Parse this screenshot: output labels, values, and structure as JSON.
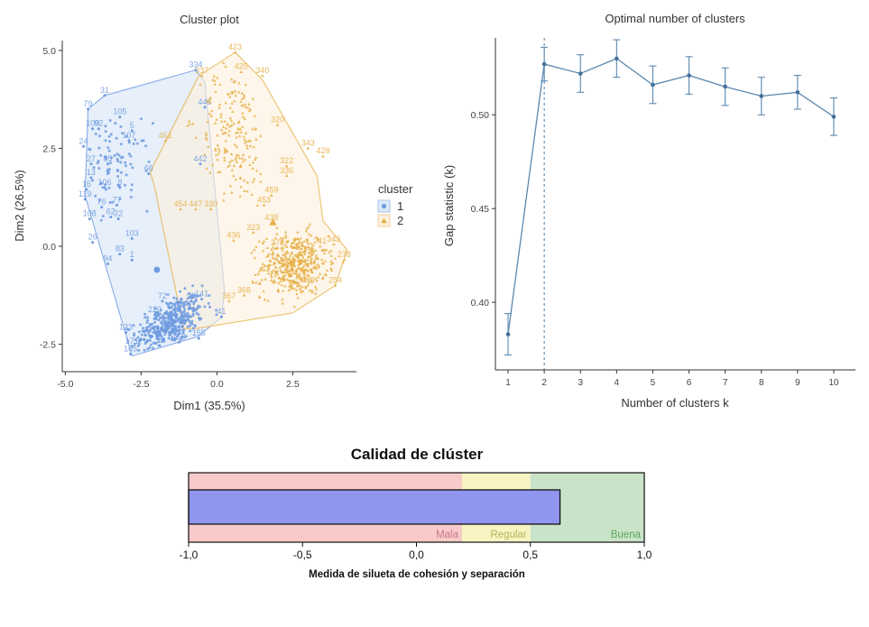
{
  "chart_data": [
    {
      "type": "scatter",
      "title": "Cluster plot",
      "xlabel": "Dim1 (35.5%)",
      "ylabel": "Dim2 (26.5%)",
      "xlim": [
        -5.1,
        4.6
      ],
      "ylim": [
        -3.2,
        5.25
      ],
      "x_ticks": [
        -5.0,
        -2.5,
        0.0,
        2.5
      ],
      "x_tick_labels": [
        "-5.0",
        "-2.5",
        "0.0",
        "2.5"
      ],
      "y_ticks": [
        -2.5,
        0.0,
        2.5,
        5.0
      ],
      "y_tick_labels": [
        "-2.5",
        "0.0",
        "2.5",
        "5.0"
      ],
      "legend": {
        "title": "cluster",
        "position": "right",
        "entries": [
          {
            "label": "1",
            "shape": "circle",
            "color": "#6f9be0"
          },
          {
            "label": "2",
            "shape": "triangle",
            "color": "#e6b048"
          }
        ]
      },
      "series": [
        {
          "name": "1",
          "color": "#6f9be0",
          "fill": "#dde9f8",
          "hull": [
            [
              -2.8,
              -2.8
            ],
            [
              -4.35,
              1.3
            ],
            [
              -4.25,
              3.5
            ],
            [
              -3.7,
              3.85
            ],
            [
              -0.7,
              4.5
            ],
            [
              -0.4,
              4.2
            ],
            [
              0.25,
              -1.15
            ],
            [
              0.15,
              -1.8
            ],
            [
              -0.6,
              -2.3
            ],
            [
              -2.8,
              -2.8
            ]
          ],
          "centroid": [
            -1.98,
            -0.6
          ],
          "labeled_points": [
            {
              "x": -4.25,
              "y": 3.5,
              "label": "79"
            },
            {
              "x": -3.7,
              "y": 3.85,
              "label": "31"
            },
            {
              "x": -3.2,
              "y": 3.3,
              "label": "105"
            },
            {
              "x": -4.1,
              "y": 3.0,
              "label": "100"
            },
            {
              "x": -3.9,
              "y": 3.0,
              "label": "92"
            },
            {
              "x": -2.8,
              "y": 2.95,
              "label": "5"
            },
            {
              "x": -2.9,
              "y": 2.7,
              "label": "107"
            },
            {
              "x": -4.4,
              "y": 2.55,
              "label": "24"
            },
            {
              "x": -3.6,
              "y": 2.1,
              "label": "85"
            },
            {
              "x": -4.15,
              "y": 2.1,
              "label": "27"
            },
            {
              "x": -4.15,
              "y": 1.75,
              "label": "13"
            },
            {
              "x": -4.3,
              "y": 1.45,
              "label": "16"
            },
            {
              "x": -3.7,
              "y": 1.5,
              "label": "106"
            },
            {
              "x": -3.2,
              "y": 1.5,
              "label": "8"
            },
            {
              "x": -4.35,
              "y": 1.2,
              "label": "119"
            },
            {
              "x": -3.8,
              "y": 1.0,
              "label": "76"
            },
            {
              "x": -3.3,
              "y": 1.05,
              "label": "77"
            },
            {
              "x": -3.5,
              "y": 0.75,
              "label": "62"
            },
            {
              "x": -3.25,
              "y": 0.7,
              "label": "22"
            },
            {
              "x": -4.2,
              "y": 0.7,
              "label": "108"
            },
            {
              "x": -4.1,
              "y": 0.1,
              "label": "26"
            },
            {
              "x": -2.8,
              "y": 0.2,
              "label": "103"
            },
            {
              "x": -3.2,
              "y": -0.2,
              "label": "83"
            },
            {
              "x": -3.6,
              "y": -0.45,
              "label": "94"
            },
            {
              "x": -2.8,
              "y": -0.35,
              "label": "1"
            },
            {
              "x": -0.7,
              "y": 4.5,
              "label": "334"
            },
            {
              "x": -0.4,
              "y": 3.55,
              "label": "446"
            },
            {
              "x": -0.55,
              "y": 2.1,
              "label": "442"
            },
            {
              "x": -2.25,
              "y": 1.85,
              "label": "66"
            },
            {
              "x": -1.8,
              "y": -1.4,
              "label": "72"
            },
            {
              "x": -2.05,
              "y": -1.75,
              "label": "220"
            },
            {
              "x": -3.0,
              "y": -2.2,
              "label": "123"
            },
            {
              "x": -2.8,
              "y": -2.55,
              "label": "171"
            },
            {
              "x": -2.85,
              "y": -2.75,
              "label": "165"
            },
            {
              "x": -1.25,
              "y": -2.45,
              "label": "153"
            },
            {
              "x": -0.6,
              "y": -2.35,
              "label": "155"
            },
            {
              "x": 0.15,
              "y": -1.8,
              "label": "41"
            },
            {
              "x": -0.5,
              "y": -1.35,
              "label": "141"
            },
            {
              "x": -0.85,
              "y": -1.4,
              "label": "96"
            }
          ],
          "dense_clusters": [
            {
              "cx": -1.55,
              "cy": -1.95,
              "sx": 0.55,
              "sy": 0.35,
              "rho": 0.55,
              "n": 420
            },
            {
              "cx": -3.3,
              "cy": 2.05,
              "sx": 0.55,
              "sy": 0.55,
              "rho": 0.0,
              "n": 90
            }
          ]
        },
        {
          "name": "2",
          "color": "#e6b048",
          "fill": "#fdf0dc",
          "hull": [
            [
              0.6,
              4.95
            ],
            [
              -0.6,
              4.35
            ],
            [
              -2.2,
              1.9
            ],
            [
              -2.05,
              1.5
            ],
            [
              -1.1,
              -2.1
            ],
            [
              -0.7,
              -2.1
            ],
            [
              2.5,
              -1.7
            ],
            [
              3.9,
              -1.0
            ],
            [
              4.3,
              -0.1
            ],
            [
              3.5,
              0.65
            ],
            [
              3.3,
              1.8
            ],
            [
              1.5,
              4.25
            ],
            [
              0.6,
              4.95
            ]
          ],
          "centroid": [
            1.85,
            0.6
          ],
          "labeled_points": [
            {
              "x": 0.6,
              "y": 4.95,
              "label": "423"
            },
            {
              "x": 1.5,
              "y": 4.35,
              "label": "340"
            },
            {
              "x": 0.8,
              "y": 4.45,
              "label": "425"
            },
            {
              "x": -0.5,
              "y": 4.35,
              "label": "337"
            },
            {
              "x": 2.0,
              "y": 3.1,
              "label": "320"
            },
            {
              "x": -1.7,
              "y": 2.7,
              "label": "461"
            },
            {
              "x": 3.0,
              "y": 2.5,
              "label": "343"
            },
            {
              "x": 3.5,
              "y": 2.3,
              "label": "428"
            },
            {
              "x": 2.3,
              "y": 2.05,
              "label": "322"
            },
            {
              "x": 2.3,
              "y": 1.8,
              "label": "336"
            },
            {
              "x": 1.8,
              "y": 1.3,
              "label": "459"
            },
            {
              "x": 1.55,
              "y": 1.05,
              "label": "453"
            },
            {
              "x": 1.8,
              "y": 0.6,
              "label": "438"
            },
            {
              "x": -1.2,
              "y": 0.95,
              "label": "454"
            },
            {
              "x": -0.7,
              "y": 0.95,
              "label": "447"
            },
            {
              "x": -0.2,
              "y": 0.95,
              "label": "330"
            },
            {
              "x": 1.2,
              "y": 0.35,
              "label": "323"
            },
            {
              "x": 0.55,
              "y": 0.15,
              "label": "436"
            },
            {
              "x": 2.0,
              "y": -0.05,
              "label": "278"
            },
            {
              "x": 3.4,
              "y": 0.0,
              "label": "241"
            },
            {
              "x": 3.85,
              "y": 0.05,
              "label": "343"
            },
            {
              "x": 4.2,
              "y": -0.35,
              "label": "278"
            },
            {
              "x": 2.2,
              "y": -0.5,
              "label": "23"
            },
            {
              "x": 3.0,
              "y": -1.0,
              "label": "305"
            },
            {
              "x": 3.9,
              "y": -1.0,
              "label": "254"
            },
            {
              "x": 0.9,
              "y": -1.25,
              "label": "366"
            },
            {
              "x": 0.4,
              "y": -1.4,
              "label": "367"
            }
          ],
          "dense_clusters": [
            {
              "cx": 2.55,
              "cy": -0.45,
              "sx": 0.55,
              "sy": 0.4,
              "rho": 0.1,
              "n": 460
            },
            {
              "cx": 0.55,
              "cy": 2.85,
              "sx": 0.55,
              "sy": 0.85,
              "rho": -0.2,
              "n": 190
            }
          ]
        }
      ]
    },
    {
      "type": "line",
      "title": "Optimal number of clusters",
      "xlabel": "Number of clusters k",
      "ylabel": "Gap statistic (k)",
      "x": [
        1,
        2,
        3,
        4,
        5,
        6,
        7,
        8,
        9,
        10
      ],
      "x_tick_labels": [
        "1",
        "2",
        "3",
        "4",
        "5",
        "6",
        "7",
        "8",
        "9",
        "10"
      ],
      "y_ticks": [
        0.4,
        0.45,
        0.5
      ],
      "y_tick_labels": [
        "0.40",
        "0.45",
        "0.50"
      ],
      "xlim": [
        0.65,
        10.6
      ],
      "ylim": [
        0.364,
        0.541
      ],
      "series": [
        {
          "name": "gap",
          "color": "#5b88b0",
          "values": [
            0.383,
            0.527,
            0.522,
            0.53,
            0.516,
            0.521,
            0.515,
            0.51,
            0.512,
            0.499
          ],
          "errors": [
            0.011,
            0.009,
            0.01,
            0.01,
            0.01,
            0.01,
            0.01,
            0.01,
            0.009,
            0.01
          ]
        }
      ],
      "optimal_k": 2,
      "vline_style": "dashed"
    },
    {
      "type": "bar",
      "title": "Calidad de clúster",
      "xlabel": "Medida de silueta de cohesión y separación",
      "xlim": [
        -1.0,
        1.0
      ],
      "x_ticks": [
        -1.0,
        -0.5,
        0.0,
        0.5,
        1.0
      ],
      "x_tick_labels": [
        "-1,0",
        "-0,5",
        "0,0",
        "0,5",
        "1,0"
      ],
      "orientation": "horizontal",
      "values": [
        0.63
      ],
      "bar_color": "#9095ee",
      "bands": [
        {
          "label": "Mala",
          "from": -1.0,
          "to": 0.2,
          "color": "#f8caca",
          "label_color": "#c87a8a"
        },
        {
          "label": "Regular",
          "from": 0.2,
          "to": 0.5,
          "color": "#f8f4c2",
          "label_color": "#b9b35a"
        },
        {
          "label": "Buena",
          "from": 0.5,
          "to": 1.0,
          "color": "#c9e3c8",
          "label_color": "#5aa85a"
        }
      ]
    }
  ]
}
